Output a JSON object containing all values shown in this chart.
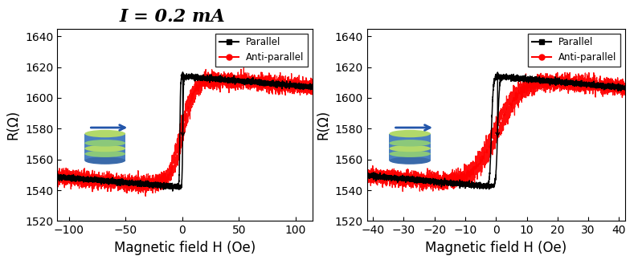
{
  "title": "I = 0.2 mA",
  "title_fontsize": 16,
  "title_fontweight": "bold",
  "ylabel": "R(Ω)",
  "xlabel": "Magnetic field H (Oe)",
  "ylabel_fontsize": 12,
  "xlabel_fontsize": 12,
  "tick_fontsize": 10,
  "ylim": [
    1520,
    1645
  ],
  "yticks": [
    1520,
    1540,
    1560,
    1580,
    1600,
    1620,
    1640
  ],
  "plot1_xlim": [
    -110,
    115
  ],
  "plot1_xticks": [
    -100,
    -50,
    0,
    50,
    100
  ],
  "plot2_xlim": [
    -42,
    42
  ],
  "plot2_xticks": [
    -40,
    -30,
    -20,
    -10,
    0,
    10,
    20,
    30,
    40
  ],
  "parallel_color": "#000000",
  "antiparallel_color": "#ff0000",
  "parallel_label": "Parallel",
  "antiparallel_label": "Anti-parallel",
  "R_high": 1614,
  "R_low": 1542,
  "noise_amp": 2.0,
  "background_color": "#ffffff",
  "plot1_par_switch_down": 0.5,
  "plot1_par_switch_up": -2.0,
  "plot1_par_sharpness": 3.5,
  "plot1_ap_switch_down": 1.5,
  "plot1_ap_switch_up": -1.5,
  "plot1_ap_sharpness": 0.18,
  "plot1_slope": -0.06,
  "plot2_par_switch_down": 0.5,
  "plot2_par_switch_up": -1.5,
  "plot2_par_sharpness": 3.5,
  "plot2_ap_switch_down": 1.0,
  "plot2_ap_switch_up": -1.0,
  "plot2_ap_sharpness": 0.25,
  "plot2_slope": -0.18
}
